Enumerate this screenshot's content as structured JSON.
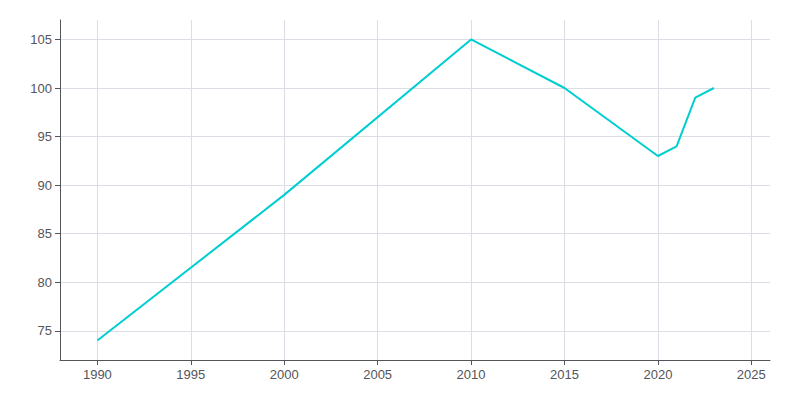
{
  "chart_data": {
    "type": "line",
    "x": [
      1990,
      2000,
      2010,
      2015,
      2020,
      2021,
      2022,
      2023
    ],
    "values": [
      74,
      89,
      105,
      100,
      93,
      94,
      99,
      100
    ],
    "color": "#00CED1",
    "xlim": [
      1988,
      2026
    ],
    "ylim": [
      72,
      107
    ],
    "xticks": [
      1990,
      1995,
      2000,
      2005,
      2010,
      2015,
      2020,
      2025
    ],
    "yticks": [
      75,
      80,
      85,
      90,
      95,
      100,
      105
    ],
    "grid": true
  }
}
